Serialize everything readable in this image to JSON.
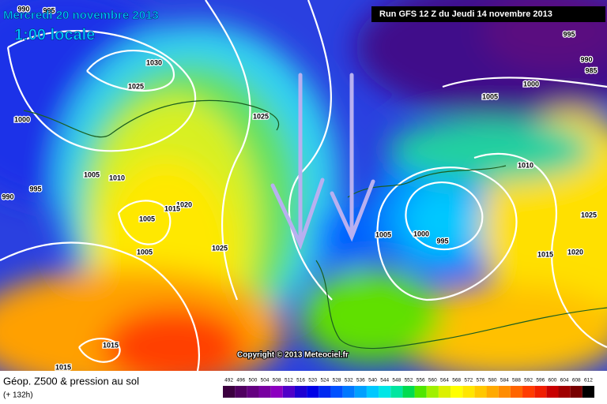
{
  "title": "Mercredi 20 novembre 2013",
  "subtitle": "1:00 locale",
  "run": "Run GFS 12 Z du Jeudi 14 novembre 2013",
  "copyright": "Copyright © 2013 Meteociel.fr",
  "caption": "Géop. Z500 & pression au sol",
  "lead": "(+ 132h)",
  "isobar_labels": [
    990,
    995,
    1030,
    1025,
    1000,
    1025,
    1005,
    1010,
    990,
    995,
    1020,
    1015,
    1005,
    1005,
    1025,
    1015,
    1015,
    995,
    990,
    985,
    1000,
    1005,
    1010,
    1025,
    1005,
    1000,
    995,
    1015,
    1020
  ],
  "legend": {
    "labels": [
      492,
      496,
      500,
      504,
      508,
      512,
      516,
      520,
      524,
      528,
      532,
      536,
      540,
      544,
      548,
      552,
      556,
      560,
      564,
      568,
      572,
      576,
      580,
      584,
      588,
      592,
      596,
      600,
      604,
      608,
      612
    ],
    "colors": [
      "#3c0040",
      "#500060",
      "#640080",
      "#7800a0",
      "#8c00c0",
      "#5000c8",
      "#1e00d2",
      "#0000e6",
      "#0028f0",
      "#0050ff",
      "#0078ff",
      "#00a0ff",
      "#00c8ff",
      "#00e6e6",
      "#00e6a0",
      "#00dc50",
      "#50e600",
      "#a0f000",
      "#dcf000",
      "#ffff00",
      "#ffe600",
      "#ffc800",
      "#ffaa00",
      "#ff8c00",
      "#ff6400",
      "#ff3c00",
      "#f01e00",
      "#c80000",
      "#a00000",
      "#780000",
      "#000000"
    ]
  }
}
